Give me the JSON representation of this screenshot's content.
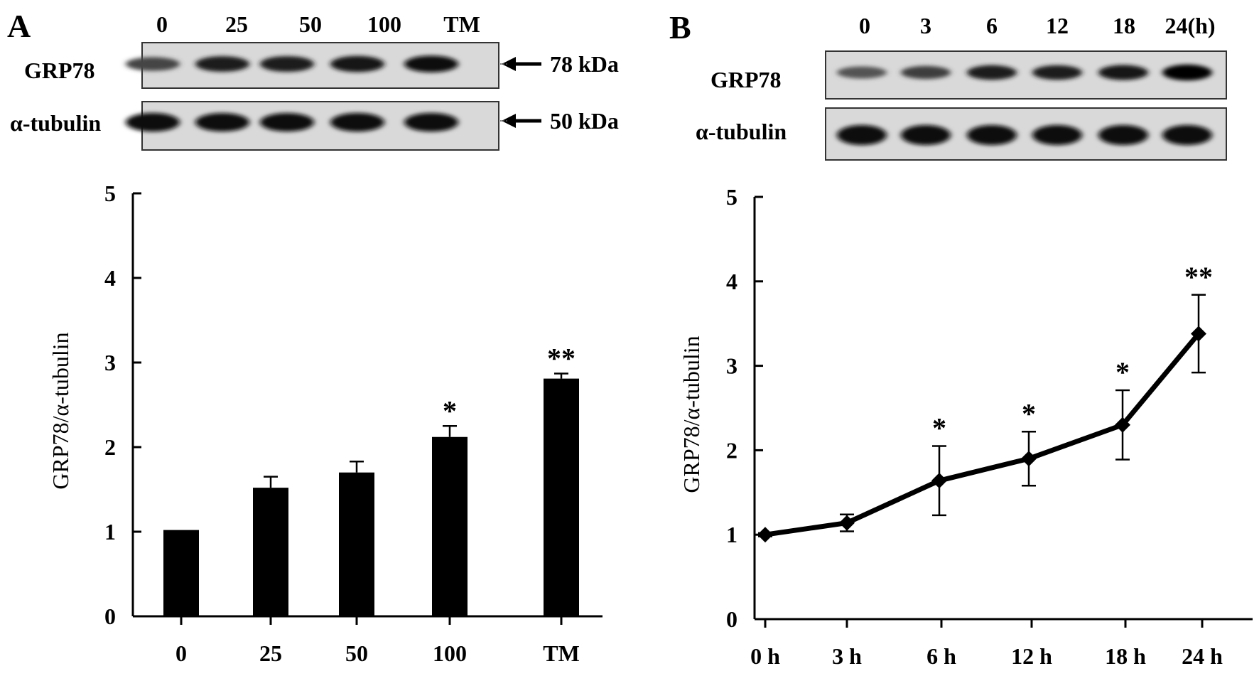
{
  "panels": [
    {
      "letter": "A",
      "blot": {
        "lane_labels": [
          "0",
          "25",
          "50",
          "100",
          "TM"
        ],
        "rows": [
          {
            "label": "GRP78",
            "marker": "78 kDa",
            "intensity": [
              0.55,
              0.8,
              0.82,
              0.88,
              0.95
            ]
          },
          {
            "label": "α-tubulin",
            "marker": "50 kDa",
            "intensity": [
              0.92,
              0.9,
              0.9,
              0.92,
              0.93
            ]
          }
        ]
      }
    },
    {
      "letter": "B",
      "blot": {
        "lane_labels": [
          "0",
          "3",
          "6",
          "12",
          "18",
          "24(h)"
        ],
        "rows": [
          {
            "label": "GRP78",
            "intensity": [
              0.45,
              0.6,
              0.82,
              0.8,
              0.88,
              1.0
            ]
          },
          {
            "label": "α-tubulin",
            "intensity": [
              0.95,
              0.95,
              0.95,
              0.95,
              0.95,
              0.95
            ]
          }
        ]
      }
    }
  ],
  "chart_data": [
    {
      "type": "bar",
      "categories": [
        "0",
        "25",
        "50",
        "100",
        "TM"
      ],
      "values": [
        1.02,
        1.52,
        1.7,
        2.12,
        2.81
      ],
      "error": [
        0,
        0.13,
        0.13,
        0.13,
        0.06
      ],
      "significance": [
        "",
        "",
        "",
        "*",
        "**"
      ],
      "title": "",
      "xlabel": "",
      "ylabel": "GRP78/α-tubulin",
      "ylim": [
        0,
        5
      ],
      "yticks": [
        0,
        1,
        2,
        3,
        4,
        5
      ],
      "color": "#000000"
    },
    {
      "type": "line",
      "categories": [
        "0 h",
        "3 h",
        "6 h",
        "12 h",
        "18 h",
        "24 h"
      ],
      "values": [
        1.0,
        1.14,
        1.64,
        1.9,
        2.3,
        3.38
      ],
      "error": [
        0.02,
        0.1,
        0.41,
        0.32,
        0.41,
        0.46
      ],
      "significance": [
        "",
        "",
        "*",
        "*",
        "*",
        "**"
      ],
      "title": "",
      "xlabel": "",
      "ylabel": "GRP78/α-tubulin",
      "ylim": [
        0,
        5
      ],
      "yticks": [
        0,
        1,
        2,
        3,
        4,
        5
      ],
      "marker": "diamond",
      "color": "#000000"
    }
  ]
}
